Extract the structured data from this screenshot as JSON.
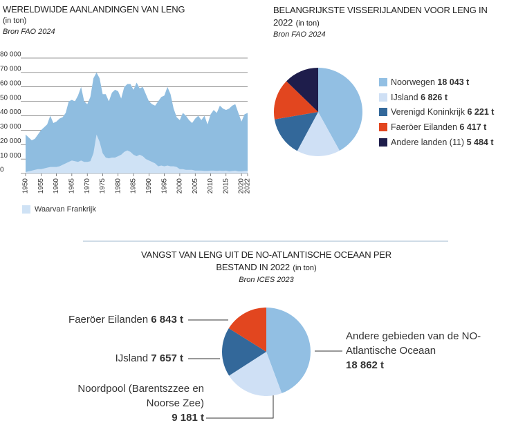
{
  "chart_data": [
    {
      "type": "area",
      "title": "WERELDWIJDE AANLANDINGEN VAN LENG",
      "subtitle": "(in ton)",
      "source": "Bron FAO 2024",
      "x": [
        1950,
        1951,
        1952,
        1953,
        1954,
        1955,
        1956,
        1957,
        1958,
        1959,
        1960,
        1961,
        1962,
        1963,
        1964,
        1965,
        1966,
        1967,
        1968,
        1969,
        1970,
        1971,
        1972,
        1973,
        1974,
        1975,
        1976,
        1977,
        1978,
        1979,
        1980,
        1981,
        1982,
        1983,
        1984,
        1985,
        1986,
        1987,
        1988,
        1989,
        1990,
        1991,
        1992,
        1993,
        1994,
        1995,
        1996,
        1997,
        1998,
        1999,
        2000,
        2001,
        2002,
        2003,
        2004,
        2005,
        2006,
        2007,
        2008,
        2009,
        2010,
        2011,
        2012,
        2013,
        2014,
        2015,
        2016,
        2017,
        2018,
        2019,
        2020,
        2021,
        2022
      ],
      "series": [
        {
          "color": "#8fbde0",
          "values": [
            27000,
            25000,
            23000,
            24000,
            27000,
            30000,
            32000,
            34000,
            40000,
            35000,
            36000,
            38000,
            39000,
            42000,
            50000,
            51000,
            50000,
            54000,
            60000,
            50000,
            48000,
            53000,
            66000,
            70000,
            66000,
            55000,
            55000,
            50000,
            56000,
            58000,
            57000,
            52000,
            60000,
            62000,
            62000,
            58000,
            63000,
            59000,
            60000,
            55000,
            50000,
            48000,
            47000,
            50000,
            53000,
            54000,
            60000,
            55000,
            45000,
            39000,
            37000,
            42000,
            40000,
            37000,
            35000,
            38000,
            40000,
            37000,
            40000,
            34000,
            41000,
            44000,
            42000,
            47000,
            45000,
            44000,
            45000,
            47000,
            48000,
            42000,
            36000,
            41000,
            42000
          ]
        },
        {
          "name": "Waarvan Frankrijk",
          "color": "#cfe2f5",
          "values": [
            1000,
            1500,
            2000,
            2500,
            3000,
            3000,
            3500,
            4000,
            4500,
            4500,
            4500,
            5000,
            6000,
            7000,
            8000,
            9000,
            8500,
            8000,
            9000,
            8000,
            8000,
            8500,
            14000,
            27000,
            22000,
            14000,
            11000,
            10500,
            11000,
            11000,
            12000,
            13000,
            15000,
            16000,
            15000,
            13000,
            12000,
            13000,
            12000,
            10000,
            9000,
            8000,
            7000,
            5000,
            5500,
            5000,
            5500,
            5000,
            5000,
            4500,
            3000,
            3000,
            2500,
            2500,
            2500,
            2000,
            2000,
            2000,
            1800,
            1800,
            2000,
            2000,
            1800,
            2000,
            1800,
            2000,
            1500,
            1800,
            2000,
            1500,
            1500,
            1800,
            1800
          ]
        }
      ],
      "xlim": [
        1950,
        2022
      ],
      "xticks": [
        1950,
        1955,
        1960,
        1965,
        1970,
        1975,
        1980,
        1985,
        1990,
        1995,
        2000,
        2005,
        2010,
        2015,
        2020,
        2022
      ],
      "ylim": [
        0,
        80000
      ],
      "yticks": [
        0,
        {
          "value": 10000,
          "label": "10 000"
        },
        {
          "value": 20000,
          "label": "20 000"
        },
        {
          "value": 30000,
          "label": "30 000"
        },
        {
          "value": 40000,
          "label": "40 000"
        },
        {
          "value": 50000,
          "label": "50 000"
        },
        {
          "value": 60000,
          "label": "60 000"
        },
        {
          "value": 70000,
          "label": "70 000"
        },
        {
          "value": 80000,
          "label": "80 000"
        }
      ],
      "grid": true
    },
    {
      "type": "pie",
      "title": "BELANGRIJKSTE VISSERIJLANDEN VOOR LENG IN 2022",
      "subtitle": "(in ton)",
      "source": "Bron FAO 2024",
      "categories": [
        "Noorwegen",
        "IJsland",
        "Verenigd Koninkrijk",
        "Faeröer Eilanden",
        "Andere landen (11)"
      ],
      "values": [
        18043,
        6826,
        6221,
        6417,
        5484
      ],
      "value_labels": [
        "18 043 t",
        "6 826 t",
        "6 221 t",
        "6 417 t",
        "5 484 t"
      ],
      "colors": [
        "#92bfe3",
        "#cfe0f5",
        "#33689a",
        "#e2461f",
        "#1e1d4b"
      ]
    },
    {
      "type": "pie",
      "title": "VANGST VAN LENG UIT DE NO-ATLANTISCHE OCEAAN PER BESTAND IN 2022",
      "subtitle": "(in ton)",
      "source": "Bron ICES 2023",
      "categories": [
        "Andere gebieden van de NO-Atlantische Oceaan",
        "Noordpool (Barentszzee en Noorse Zee)",
        "IJsland",
        "Faeröer Eilanden"
      ],
      "values": [
        18862,
        9181,
        7657,
        6843
      ],
      "value_labels": [
        "18 862 t",
        "9 181 t",
        "7 657 t",
        "6 843 t"
      ],
      "colors": [
        "#92bfe3",
        "#cfe0f5",
        "#33689a",
        "#e2461f"
      ]
    }
  ]
}
